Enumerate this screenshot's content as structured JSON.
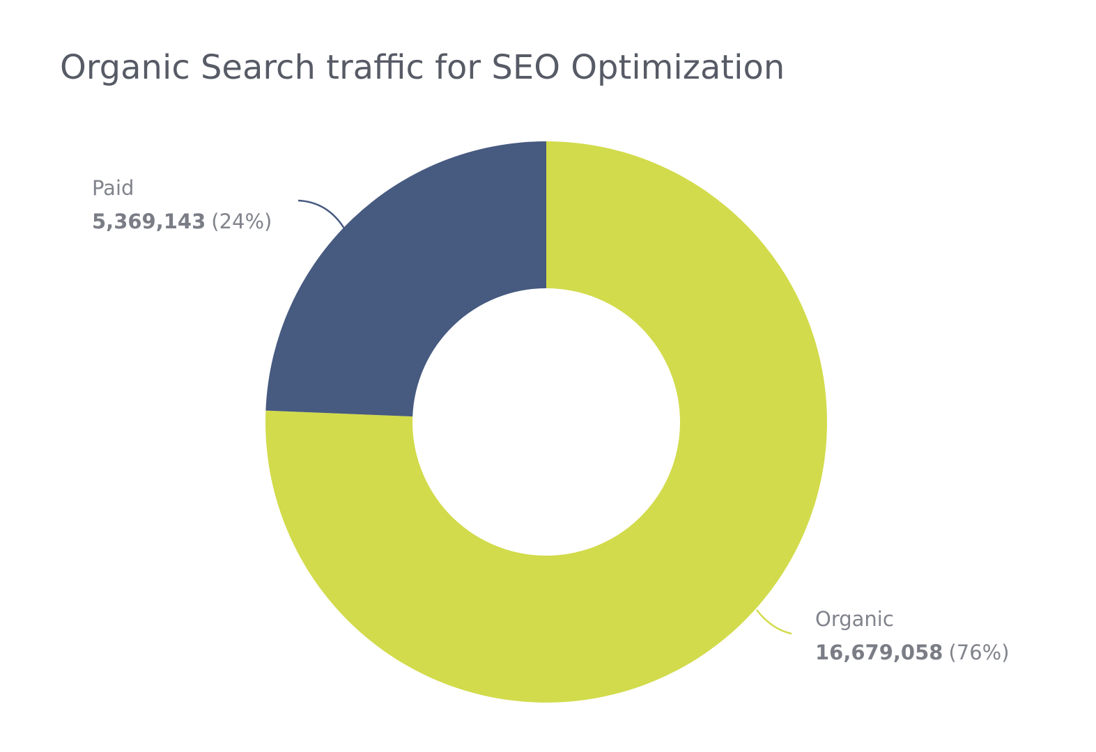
{
  "chart_data": {
    "type": "donut",
    "title": "Organic Search traffic for SEO Optimization",
    "categories": [
      "Organic",
      "Paid"
    ],
    "values": [
      16679058,
      5369143
    ],
    "value_labels": [
      "16,679,058",
      "5,369,143"
    ],
    "percents": [
      76,
      24
    ],
    "percent_labels": [
      "(76%)",
      "(24%)"
    ],
    "colors": [
      "#d2db4b",
      "#475a80"
    ]
  }
}
